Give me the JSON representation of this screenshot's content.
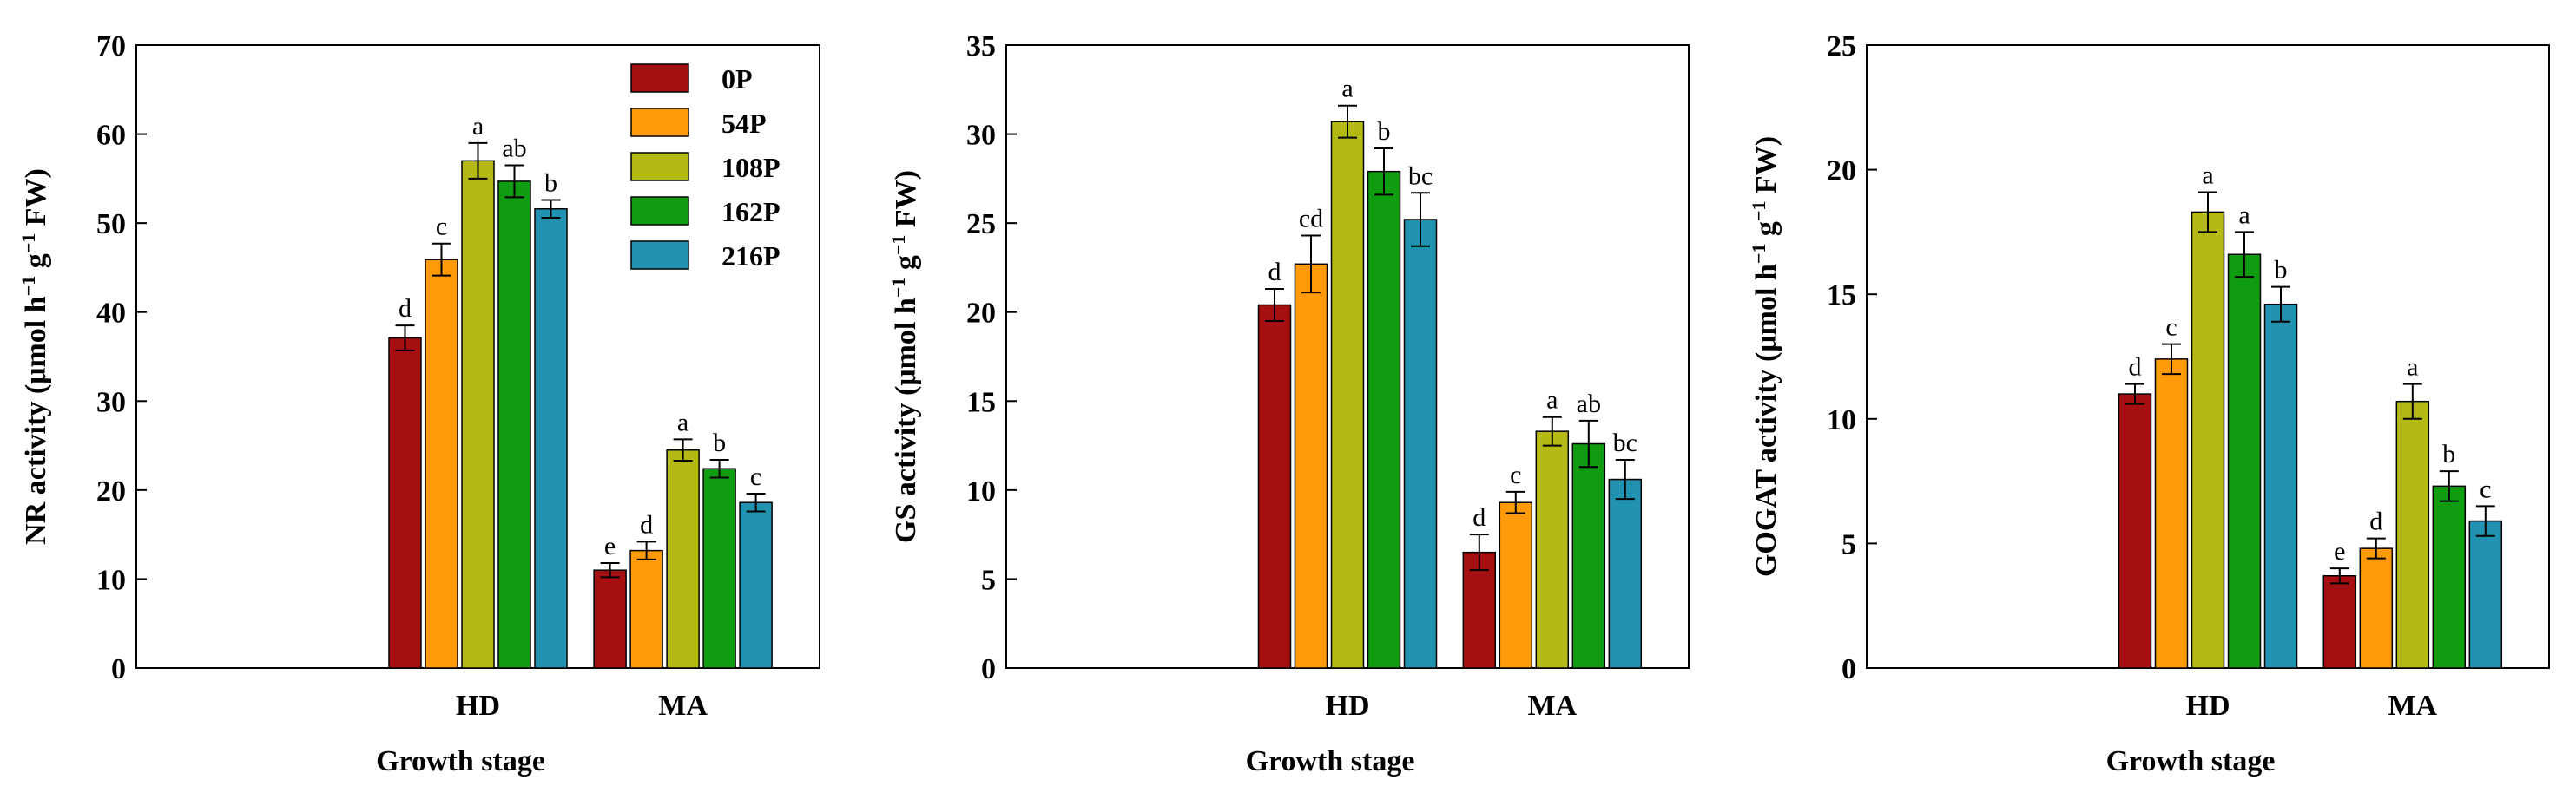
{
  "chart_data": [
    {
      "type": "bar",
      "ylabel": "NR activity (μmol h⁻¹ g⁻¹ FW)",
      "ylabel_parts": {
        "pre": "NR activity (μmol h",
        "sup1": "−1",
        "mid": " g",
        "sup2": "−1",
        "post": " FW)"
      },
      "xlabel": "Growth stage",
      "ylim": [
        0,
        70
      ],
      "yticks": [
        0,
        10,
        20,
        30,
        40,
        50,
        60,
        70
      ],
      "categories": [
        "HD",
        "MA"
      ],
      "show_legend": true,
      "series": [
        {
          "name": "0P",
          "color": "#a50f0f",
          "values": [
            37.1,
            11.0
          ],
          "errors": [
            1.4,
            0.8
          ],
          "letters": [
            "d",
            "e"
          ]
        },
        {
          "name": "54P",
          "color": "#ff9a0a",
          "values": [
            45.9,
            13.2
          ],
          "errors": [
            1.8,
            1.0
          ],
          "letters": [
            "c",
            "d"
          ]
        },
        {
          "name": "108P",
          "color": "#b5b915",
          "values": [
            57.0,
            24.5
          ],
          "errors": [
            2.0,
            1.2
          ],
          "letters": [
            "a",
            "a"
          ]
        },
        {
          "name": "162P",
          "color": "#0f9c10",
          "values": [
            54.7,
            22.4
          ],
          "errors": [
            1.8,
            1.0
          ],
          "letters": [
            "ab",
            "b"
          ]
        },
        {
          "name": "216P",
          "color": "#2192b0",
          "values": [
            51.6,
            18.6
          ],
          "errors": [
            1.0,
            1.0
          ],
          "letters": [
            "b",
            "c"
          ]
        }
      ]
    },
    {
      "type": "bar",
      "ylabel": "GS activity (μmol h⁻¹ g⁻¹ FW)",
      "ylabel_parts": {
        "pre": "GS activity (μmol h",
        "sup1": "−1",
        "mid": " g",
        "sup2": "−1",
        "post": " FW)"
      },
      "xlabel": "Growth stage",
      "ylim": [
        0,
        35
      ],
      "yticks": [
        0,
        5,
        10,
        15,
        20,
        25,
        30,
        35
      ],
      "categories": [
        "HD",
        "MA"
      ],
      "show_legend": false,
      "series": [
        {
          "name": "0P",
          "color": "#a50f0f",
          "values": [
            20.4,
            6.5
          ],
          "errors": [
            0.9,
            1.0
          ],
          "letters": [
            "d",
            "d"
          ]
        },
        {
          "name": "54P",
          "color": "#ff9a0a",
          "values": [
            22.7,
            9.3
          ],
          "errors": [
            1.6,
            0.6
          ],
          "letters": [
            "cd",
            "c"
          ]
        },
        {
          "name": "108P",
          "color": "#b5b915",
          "values": [
            30.7,
            13.3
          ],
          "errors": [
            0.9,
            0.8
          ],
          "letters": [
            "a",
            "a"
          ]
        },
        {
          "name": "162P",
          "color": "#0f9c10",
          "values": [
            27.9,
            12.6
          ],
          "errors": [
            1.3,
            1.3
          ],
          "letters": [
            "b",
            "ab"
          ]
        },
        {
          "name": "216P",
          "color": "#2192b0",
          "values": [
            25.2,
            10.6
          ],
          "errors": [
            1.5,
            1.1
          ],
          "letters": [
            "bc",
            "bc"
          ]
        }
      ]
    },
    {
      "type": "bar",
      "ylabel": "GOGAT activity (μmol h⁻¹ g⁻¹ FW)",
      "ylabel_parts": {
        "pre": "GOGAT activity (μmol h",
        "sup1": "−1",
        "mid": " g",
        "sup2": "−1",
        "post": " FW)"
      },
      "xlabel": "Growth stage",
      "ylim": [
        0,
        25
      ],
      "yticks": [
        0,
        5,
        10,
        15,
        20,
        25
      ],
      "categories": [
        "HD",
        "MA"
      ],
      "show_legend": false,
      "series": [
        {
          "name": "0P",
          "color": "#a50f0f",
          "values": [
            11.0,
            3.7
          ],
          "errors": [
            0.4,
            0.3
          ],
          "letters": [
            "d",
            "e"
          ]
        },
        {
          "name": "54P",
          "color": "#ff9a0a",
          "values": [
            12.4,
            4.8
          ],
          "errors": [
            0.6,
            0.4
          ],
          "letters": [
            "c",
            "d"
          ]
        },
        {
          "name": "108P",
          "color": "#b5b915",
          "values": [
            18.3,
            10.7
          ],
          "errors": [
            0.8,
            0.7
          ],
          "letters": [
            "a",
            "a"
          ]
        },
        {
          "name": "162P",
          "color": "#0f9c10",
          "values": [
            16.6,
            7.3
          ],
          "errors": [
            0.9,
            0.6
          ],
          "letters": [
            "a",
            "b"
          ]
        },
        {
          "name": "216P",
          "color": "#2192b0",
          "values": [
            14.6,
            5.9
          ],
          "errors": [
            0.7,
            0.6
          ],
          "letters": [
            "b",
            "c"
          ]
        }
      ]
    }
  ]
}
